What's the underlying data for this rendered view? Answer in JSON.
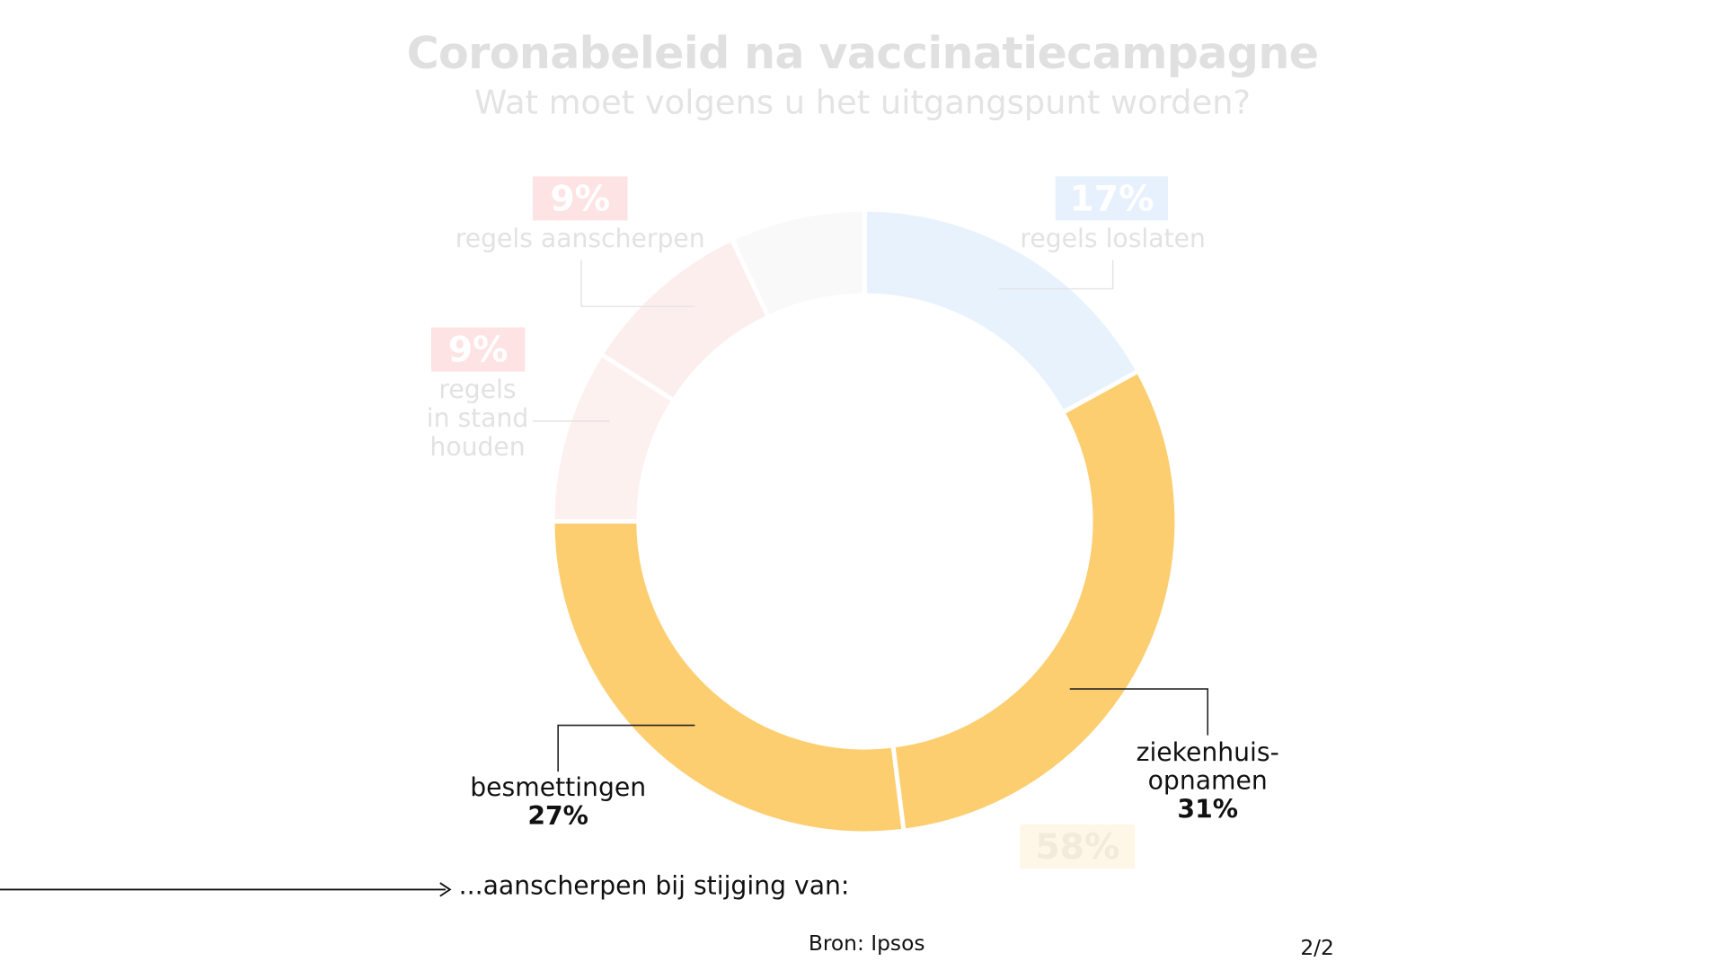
{
  "chart_data": {
    "type": "pie",
    "title": "Coronabeleid na vaccinatiecampagne",
    "subtitle": "Wat moet volgens u het uitgangspunt worden?",
    "slices": [
      {
        "label": "regels loslaten",
        "value": 17,
        "value_label": "17%",
        "color": "#e8f2fd",
        "highlighted": false
      },
      {
        "label": "ziekenhuis-opnamen",
        "value": 31,
        "value_label": "31%",
        "color": "#fcce70",
        "highlighted": true
      },
      {
        "label": "besmettingen",
        "value": 27,
        "value_label": "27%",
        "color": "#fcce70",
        "highlighted": true
      },
      {
        "label": "regels in stand houden",
        "value": 9,
        "value_label": "9%",
        "color": "#fdf1f0",
        "highlighted": false
      },
      {
        "label": "regels aanscherpen",
        "value": 9,
        "value_label": "9%",
        "color": "#fdeeee",
        "highlighted": false
      },
      {
        "label": "",
        "value": 7,
        "value_label": "",
        "color": "#f9f9f9",
        "highlighted": false
      }
    ],
    "group_total_label": "58%",
    "colors": {
      "pink_badge": "#fde3e3",
      "blue_badge": "#e6f1fd",
      "yellow_badge": "#fef6e6"
    }
  },
  "footnote": "...aanscherpen bij stijging van:",
  "source": "Bron: Ipsos",
  "page_indicator": "2/2",
  "labels": {
    "loslaten_pct": "17%",
    "loslaten_text": "regels loslaten",
    "aanscherpen_pct": "9%",
    "aanscherpen_text": "regels aanscherpen",
    "standhouden_pct": "9%",
    "standhouden_l1": "regels",
    "standhouden_l2": "in stand",
    "standhouden_l3": "houden",
    "ziekenhuis_l1": "ziekenhuis-",
    "ziekenhuis_l2": "opnamen",
    "ziekenhuis_pct": "31%",
    "besmettingen_text": "besmettingen",
    "besmettingen_pct": "27%",
    "group_pct": "58%"
  }
}
